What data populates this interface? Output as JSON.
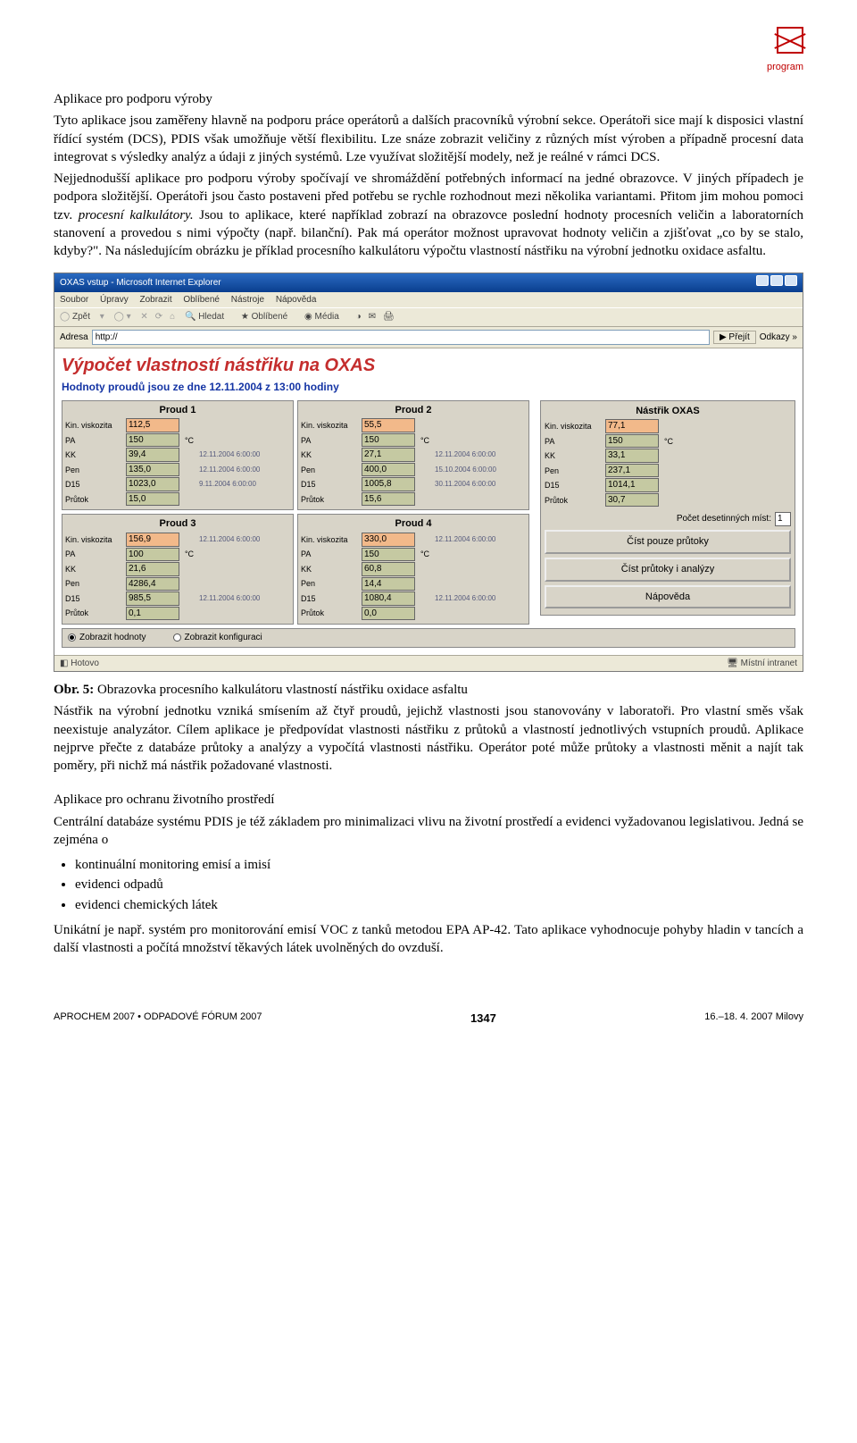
{
  "logo_caption": "program",
  "h1": "Aplikace pro podporu výroby",
  "p1": "Tyto aplikace jsou zaměřeny hlavně na podporu práce operátorů a dalších pracovníků výrobní sekce. Operátoři sice mají k disposici vlastní řídící systém (DCS), PDIS však umožňuje větší flexibilitu. Lze snáze zobrazit veličiny z různých míst výroben a případně procesní data integrovat s výsledky analýz a údaji z jiných systémů. Lze využívat složitější modely, než je reálné v rámci DCS.",
  "p2a": "Nejjednodušší aplikace pro podporu výroby spočívají ve shromáždění potřebných informací na jedné obrazovce. V jiných případech je podpora složitější. Operátoři jsou často postaveni před potřebu se rychle rozhodnout mezi několika variantami. Přitom jim mohou pomoci tzv. ",
  "p2i": "procesní kalkulátory.",
  "p2b": " Jsou to aplikace, které například zobrazí na obrazovce poslední hodnoty procesních veličin a laboratorních stanovení a provedou s nimi výpočty (např. bilanční). Pak má operátor možnost upravovat hodnoty veličin a zjišťovat „co by se stalo, kdyby?\". Na následujícím obrázku je příklad procesního kalkulátoru výpočtu vlastností nástřiku na výrobní jednotku oxidace asfaltu.",
  "caption_b": "Obr. 5:",
  "caption_t": " Obrazovka procesního kalkulátoru vlastností nástřiku oxidace asfaltu",
  "p3": "Nástřik na výrobní jednotku vzniká smísením až čtyř proudů, jejichž vlastnosti jsou stanovovány v laboratoři. Pro vlastní směs však neexistuje analyzátor. Cílem aplikace je předpovídat vlastnosti nástřiku z průtoků a vlastností jednotlivých vstupních proudů. Aplikace nejprve přečte z databáze průtoky a analýzy a vypočítá vlastnosti nástřiku. Operátor poté může průtoky a vlastnosti měnit a najít tak poměry, při nichž má nástřik požadované vlastnosti.",
  "h2": "Aplikace pro ochranu životního prostředí",
  "p4": "Centrální databáze systému PDIS je též základem pro minimalizaci vlivu na životní prostředí a evidenci vyžadovanou legislativou. Jedná se zejména o",
  "bul": [
    "kontinuální monitoring emisí a imisí",
    "evidenci odpadů",
    "evidenci chemických látek"
  ],
  "p5": "Unikátní je např. systém pro monitorování emisí VOC z tanků metodou EPA AP-42. Tato aplikace vyhodnocuje pohyby hladin v tancích a další vlastnosti a počítá množství těkavých látek uvolněných do ovzduší.",
  "footer_l": "APROCHEM 2007 • ODPADOVÉ FÓRUM 2007",
  "footer_c": "1347",
  "footer_r": "16.–18. 4. 2007 Milovy",
  "ie": {
    "title": "OXAS vstup - Microsoft Internet Explorer",
    "menu": [
      "Soubor",
      "Úpravy",
      "Zobrazit",
      "Oblíbené",
      "Nástroje",
      "Nápověda"
    ],
    "tb": {
      "back": "Zpět",
      "sep": "·",
      "search": "Hledat",
      "fav": "Oblíbené",
      "media": "Média"
    },
    "addr_lbl": "Adresa",
    "addr_val": "http://",
    "go": "Přejít",
    "links": "Odkazy »",
    "page_title": "Výpočet vlastností nástřiku na OXAS",
    "page_sub": "Hodnoty proudů jsou ze dne 12.11.2004 z 13:00 hodiny",
    "row_lbls": [
      "Kin. viskozita",
      "PA",
      "KK",
      "Pen",
      "D15",
      "Průtok"
    ],
    "units": [
      "",
      "°C",
      "",
      "",
      "",
      ""
    ],
    "proud1": {
      "h": "Proud 1",
      "v": [
        "112,5",
        "150",
        "39,4",
        "135,0",
        "1023,0",
        "15,0"
      ],
      "ts": [
        "",
        "°C",
        "12.11.2004\n6:00:00",
        "12.11.2004\n6:00:00",
        "9.11.2004\n6:00:00",
        ""
      ]
    },
    "proud2": {
      "h": "Proud 2",
      "v": [
        "55,5",
        "150",
        "27,1",
        "400,0",
        "1005,8",
        "15,6"
      ],
      "ts": [
        "",
        "°C",
        "12.11.2004\n6:00:00",
        "15.10.2004\n6:00:00",
        "30.11.2004\n6:00:00",
        ""
      ]
    },
    "proud3": {
      "h": "Proud 3",
      "v": [
        "156,9",
        "100",
        "21,6",
        "4286,4",
        "985,5",
        "0,1"
      ],
      "ts": [
        "12.11.2004\n6:00:00",
        "°C",
        "",
        "",
        "12.11.2004\n6:00:00",
        ""
      ]
    },
    "proud4": {
      "h": "Proud 4",
      "v": [
        "330,0",
        "150",
        "60,8",
        "14,4",
        "1080,4",
        "0,0"
      ],
      "ts": [
        "12.11.2004\n6:00:00",
        "°C",
        "",
        "",
        "12.11.2004\n6:00:00",
        ""
      ]
    },
    "nastrik": {
      "h": "Nástřik OXAS",
      "v": [
        "77,1",
        "150",
        "33,1",
        "237,1",
        "1014,1",
        "30,7"
      ],
      "ts": [
        "",
        "°C",
        "",
        "",
        "",
        ""
      ]
    },
    "dec_lbl": "Počet desetinných míst:",
    "dec_val": "1",
    "btn1": "Číst pouze průtoky",
    "btn2": "Číst průtoky i analýzy",
    "btn3": "Nápověda",
    "radio1": "Zobrazit hodnoty",
    "radio2": "Zobrazit konfiguraci",
    "status_l": "Hotovo",
    "status_r": "Místní intranet"
  }
}
